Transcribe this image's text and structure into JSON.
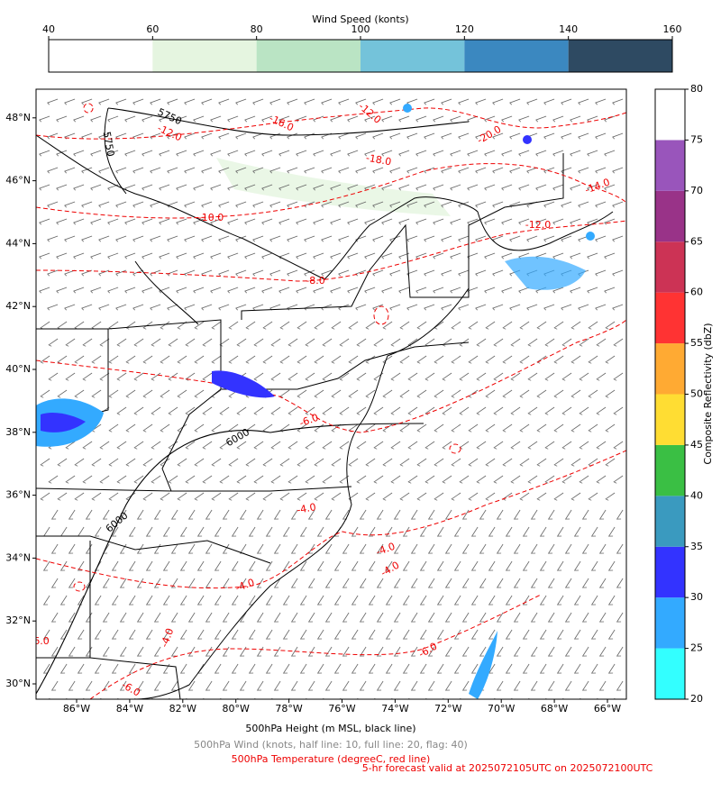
{
  "wind_colorbar": {
    "title": "Wind Speed (konts)",
    "ticks": [
      40,
      60,
      80,
      100,
      120,
      140,
      160
    ],
    "colors": [
      "#ffffff",
      "#e5f5e0",
      "#bae4c4",
      "#74c3da",
      "#3b88c0",
      "#2e4a62"
    ]
  },
  "reflectivity_colorbar": {
    "label": "Composite Reflectivity (dbZ)",
    "ticks": [
      20,
      25,
      30,
      35,
      40,
      45,
      50,
      55,
      60,
      65,
      70,
      75,
      80
    ],
    "colors": [
      "#33ffff",
      "#33aaff",
      "#3333ff",
      "#3a9abf",
      "#3abf44",
      "#ffdd33",
      "#ffaa33",
      "#ff3333",
      "#cc3355",
      "#993388",
      "#9955bb",
      "#ffffff"
    ]
  },
  "map": {
    "lon_ticks": [
      {
        "value": -86,
        "label": "86°W"
      },
      {
        "value": -84,
        "label": "84°W"
      },
      {
        "value": -82,
        "label": "82°W"
      },
      {
        "value": -80,
        "label": "80°W"
      },
      {
        "value": -78,
        "label": "78°W"
      },
      {
        "value": -76,
        "label": "76°W"
      },
      {
        "value": -74,
        "label": "74°W"
      },
      {
        "value": -72,
        "label": "72°W"
      },
      {
        "value": -70,
        "label": "70°W"
      },
      {
        "value": -68,
        "label": "68°W"
      },
      {
        "value": -66,
        "label": "66°W"
      }
    ],
    "lat_ticks": [
      {
        "value": 30,
        "label": "30°N"
      },
      {
        "value": 32,
        "label": "32°N"
      },
      {
        "value": 34,
        "label": "34°N"
      },
      {
        "value": 36,
        "label": "36°N"
      },
      {
        "value": 38,
        "label": "38°N"
      },
      {
        "value": 40,
        "label": "40°N"
      },
      {
        "value": 42,
        "label": "42°N"
      },
      {
        "value": 44,
        "label": "44°N"
      },
      {
        "value": 46,
        "label": "46°N"
      },
      {
        "value": 48,
        "label": "48°N"
      }
    ],
    "height_labels": [
      "5750",
      "5750",
      "6000",
      "6000"
    ],
    "temperature_labels": [
      "-12.0",
      "-16.0",
      "-12.0",
      "-18.0",
      "-20.0",
      "-14.0",
      "-10.0",
      "-12.0",
      "-8.0",
      "-6.0",
      "-4.0",
      "-4.0",
      "-4.0",
      "-4.0",
      "-4.0",
      "-6.0",
      "-6.0",
      "-6.0"
    ]
  },
  "captions": {
    "height": "500hPa Height (m MSL, black line)",
    "wind": "500hPa Wind (knots, half line: 10, full line: 20, flag: 40)",
    "temperature": "500hPa Temperature (degreeC, red line)",
    "valid": "5-hr forecast valid at 2025072105UTC on 2025072100UTC"
  }
}
